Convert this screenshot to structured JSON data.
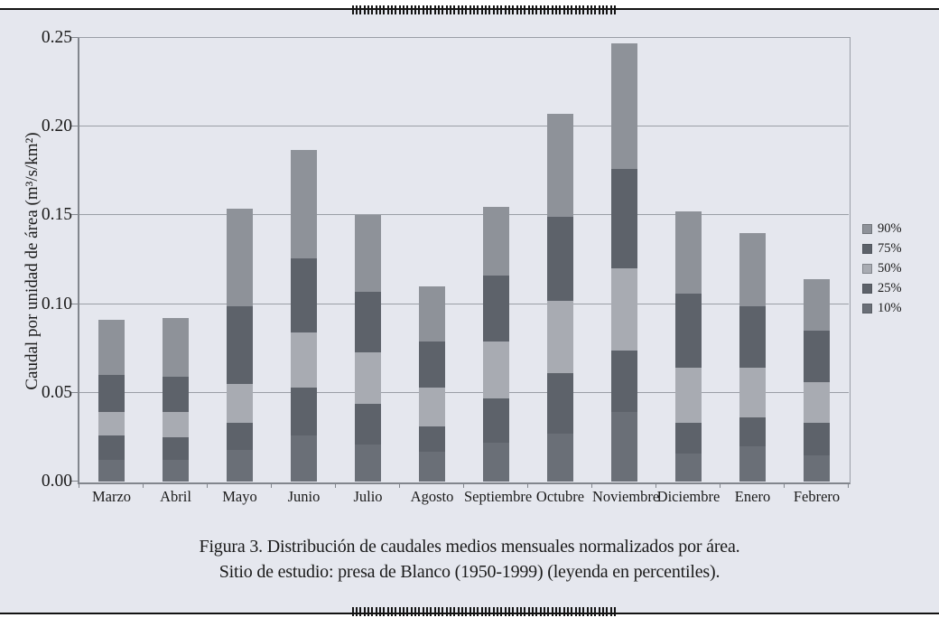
{
  "figure": {
    "caption_line1": "Figura 3. Distribución de caudales medios mensuales normalizados por área.",
    "caption_line2": "Sitio de estudio: presa de Blanco (1950-1999) (leyenda en percentiles)."
  },
  "chart_data": {
    "type": "bar",
    "stacked": true,
    "values_represent": "cumulative_percentile_level",
    "ylabel": "Caudal por unidad de área (m³/s/km²)",
    "xlabel": "",
    "ylim": [
      0,
      0.25
    ],
    "yticks": [
      0,
      0.05,
      0.1,
      0.15,
      0.2,
      0.25
    ],
    "ytick_labels": [
      "0.00",
      "0.05",
      "0.10",
      "0.15",
      "0.20",
      "0.25"
    ],
    "grid": true,
    "legend_position": "right",
    "categories": [
      "Marzo",
      "Abril",
      "Mayo",
      "Junio",
      "Julio",
      "Agosto",
      "Septiembre",
      "Octubre",
      "Noviembre",
      "Diciembre",
      "Enero",
      "Febrero"
    ],
    "series": [
      {
        "name": "10%",
        "color": "#6a6f77",
        "values": [
          0.012,
          0.012,
          0.018,
          0.026,
          0.021,
          0.017,
          0.022,
          0.027,
          0.039,
          0.016,
          0.02,
          0.015
        ]
      },
      {
        "name": "25%",
        "color": "#5d626a",
        "values": [
          0.026,
          0.025,
          0.033,
          0.053,
          0.044,
          0.031,
          0.047,
          0.061,
          0.074,
          0.033,
          0.036,
          0.033
        ]
      },
      {
        "name": "50%",
        "color": "#a8abb2",
        "values": [
          0.039,
          0.039,
          0.055,
          0.084,
          0.073,
          0.053,
          0.079,
          0.102,
          0.12,
          0.064,
          0.064,
          0.056
        ]
      },
      {
        "name": "75%",
        "color": "#5d626a",
        "values": [
          0.06,
          0.059,
          0.099,
          0.126,
          0.107,
          0.079,
          0.116,
          0.149,
          0.176,
          0.106,
          0.099,
          0.085
        ]
      },
      {
        "name": "90%",
        "color": "#8e9299",
        "values": [
          0.091,
          0.092,
          0.154,
          0.187,
          0.15,
          0.11,
          0.155,
          0.207,
          0.247,
          0.152,
          0.14,
          0.114
        ]
      }
    ],
    "legend": [
      {
        "label": "90%",
        "color": "#8e9299"
      },
      {
        "label": "75%",
        "color": "#5d626a"
      },
      {
        "label": "50%",
        "color": "#a8abb2"
      },
      {
        "label": "25%",
        "color": "#5d626a"
      },
      {
        "label": "10%",
        "color": "#6a6f77"
      }
    ],
    "colors": {
      "background": "#e5e7ee",
      "grid": "#9a9ea6",
      "axis": "#82868d"
    }
  }
}
